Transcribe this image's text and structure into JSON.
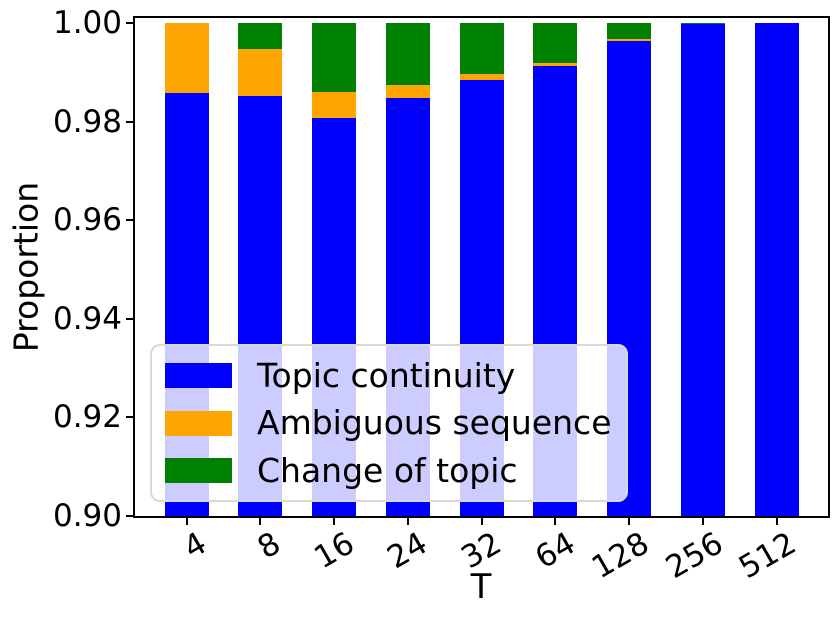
{
  "figure": {
    "background": "#ffffff",
    "frame_color": "#000000"
  },
  "axes": {
    "ylabel": "Proportion",
    "xlabel": "T",
    "ytick_labels": [
      "1.00",
      "0.98",
      "0.96",
      "0.94",
      "0.92",
      "0.90"
    ],
    "ytick_values": [
      1.0,
      0.98,
      0.96,
      0.94,
      0.92,
      0.9
    ],
    "xtick_labels": [
      "4",
      "8",
      "16",
      "24",
      "32",
      "64",
      "128",
      "256",
      "512"
    ]
  },
  "legend": {
    "items": [
      {
        "label": "Topic continuity",
        "color": "#0000ff"
      },
      {
        "label": "Ambiguous sequence",
        "color": "#ffa500"
      },
      {
        "label": "Change of topic",
        "color": "#008000"
      }
    ]
  },
  "chart_data": {
    "type": "bar",
    "stacked": true,
    "title": "",
    "xlabel": "T",
    "ylabel": "Proportion",
    "ylim": [
      0.9,
      1.0
    ],
    "grid": false,
    "legend_position": "lower left",
    "categories": [
      "4",
      "8",
      "16",
      "24",
      "32",
      "64",
      "128",
      "256",
      "512"
    ],
    "series": [
      {
        "name": "Topic continuity",
        "color": "#0000ff",
        "values": [
          0.9859,
          0.9852,
          0.9808,
          0.9848,
          0.9884,
          0.9912,
          0.9964,
          0.9998,
          1.0
        ]
      },
      {
        "name": "Ambiguous sequence",
        "color": "#ffa500",
        "values": [
          0.0141,
          0.0096,
          0.0052,
          0.0026,
          0.0012,
          0.0006,
          0.0004,
          0.0,
          0.0
        ]
      },
      {
        "name": "Change of topic",
        "color": "#008000",
        "values": [
          0.0,
          0.0052,
          0.014,
          0.0126,
          0.0104,
          0.0082,
          0.0032,
          0.0002,
          0.0
        ]
      }
    ]
  }
}
